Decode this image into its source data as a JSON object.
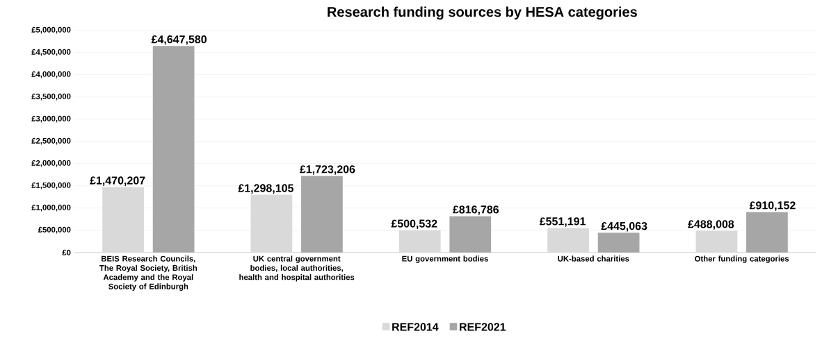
{
  "chart_data": {
    "type": "bar",
    "title": "Research funding sources by HESA categories",
    "categories": [
      "BEIS Research Councils, The Royal Society, British Academy and the Royal Society of Edinburgh",
      "UK central government bodies, local authorities, health and hospital authorities",
      "EU government bodies",
      "UK-based charities",
      "Other funding categories"
    ],
    "series": [
      {
        "name": "REF2014",
        "color": "#d9d9d9",
        "values": [
          1470207,
          1298105,
          500532,
          551191,
          488008
        ],
        "value_labels": [
          "£1,470,207",
          "£1,298,105",
          "£500,532",
          "£551,191",
          "£488,008"
        ]
      },
      {
        "name": "REF2021",
        "color": "#a6a6a6",
        "values": [
          4647580,
          1723206,
          816786,
          445063,
          910152
        ],
        "value_labels": [
          "£4,647,580",
          "£1,723,206",
          "£816,786",
          "£445,063",
          "£910,152"
        ]
      }
    ],
    "ylim": [
      0,
      5000000
    ],
    "yticks": [
      {
        "value": 0,
        "label": "£0"
      },
      {
        "value": 500000,
        "label": "£500,000"
      },
      {
        "value": 1000000,
        "label": "£1,000,000"
      },
      {
        "value": 1500000,
        "label": "£1,500,000"
      },
      {
        "value": 2000000,
        "label": "£2,000,000"
      },
      {
        "value": 2500000,
        "label": "£2,500,000"
      },
      {
        "value": 3000000,
        "label": "£3,000,000"
      },
      {
        "value": 3500000,
        "label": "£3,500,000"
      },
      {
        "value": 4000000,
        "label": "£4,000,000"
      },
      {
        "value": 4500000,
        "label": "£4,500,000"
      },
      {
        "value": 5000000,
        "label": "£5,000,000"
      }
    ],
    "grid": "y",
    "legend": "bottom"
  }
}
